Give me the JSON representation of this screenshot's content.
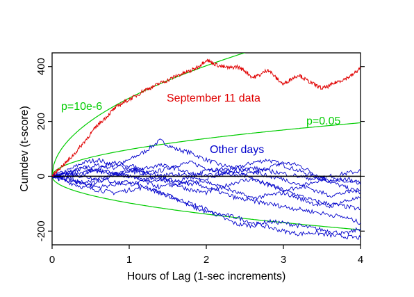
{
  "chart_data": {
    "type": "line",
    "title": "",
    "xlabel": "Hours of Lag (1-sec increments)",
    "ylabel": "Cumdev (t-score)",
    "xlim": [
      0,
      4
    ],
    "ylim": [
      -250,
      450
    ],
    "x_ticks": [
      0,
      1,
      2,
      3,
      4
    ],
    "y_ticks": [
      -200,
      0,
      200,
      400
    ],
    "x_tick_labels": [
      "0",
      "1",
      "2",
      "3",
      "4"
    ],
    "y_tick_labels": [
      "-200",
      "0",
      "200",
      "400"
    ],
    "grid": false,
    "zero_line": true,
    "colors": {
      "sept11": "#e00000",
      "other": "#0000cc",
      "envelope": "#00cc00",
      "axis": "#000000"
    },
    "annotations": [
      {
        "text": "September 11 data",
        "color": "#e00000"
      },
      {
        "text": "Other days",
        "color": "#0000cc"
      },
      {
        "text": "p=10e-6",
        "color": "#00cc00"
      },
      {
        "text": "p=0.05",
        "color": "#00cc00"
      }
    ],
    "envelopes": [
      {
        "label": "p=0.05",
        "coef": 97.5,
        "note": "y = ±coef*sqrt(x)"
      },
      {
        "label": "p=10e-6",
        "coef": 285,
        "note": "y = coef*sqrt(x)"
      }
    ],
    "series": [
      {
        "color": "#e00000",
        "x": [
          0,
          0.1,
          0.2,
          0.3,
          0.4,
          0.5,
          0.6,
          0.7,
          0.8,
          0.9,
          1.0,
          1.1,
          1.2,
          1.3,
          1.4,
          1.5,
          1.6,
          1.7,
          1.8,
          1.9,
          2.0,
          2.1,
          2.2,
          2.3,
          2.4,
          2.5,
          2.6,
          2.7,
          2.8,
          2.9,
          3.0,
          3.1,
          3.2,
          3.3,
          3.4,
          3.5,
          3.6,
          3.7,
          3.8,
          3.9,
          4.0
        ],
        "y": [
          0,
          30,
          55,
          85,
          120,
          155,
          190,
          215,
          245,
          265,
          280,
          295,
          315,
          325,
          340,
          350,
          365,
          375,
          385,
          400,
          425,
          410,
          400,
          395,
          400,
          385,
          360,
          370,
          390,
          360,
          335,
          355,
          370,
          350,
          335,
          320,
          330,
          345,
          355,
          370,
          395
        ]
      },
      {
        "color": "#0000cc",
        "x": [
          0,
          0.2,
          0.4,
          0.6,
          0.8,
          1.0,
          1.2,
          1.4,
          1.6,
          1.8,
          2.0,
          2.2,
          2.4,
          2.6,
          2.8,
          3.0,
          3.2,
          3.4,
          3.6,
          3.8,
          4.0
        ],
        "y": [
          0,
          10,
          30,
          40,
          30,
          60,
          90,
          130,
          100,
          85,
          60,
          40,
          30,
          50,
          60,
          40,
          20,
          0,
          -10,
          -20,
          -30
        ]
      },
      {
        "color": "#0000cc",
        "x": [
          0,
          0.2,
          0.4,
          0.6,
          0.8,
          1.0,
          1.2,
          1.4,
          1.6,
          1.8,
          2.0,
          2.2,
          2.4,
          2.6,
          2.8,
          3.0,
          3.2,
          3.4,
          3.6,
          3.8,
          4.0
        ],
        "y": [
          0,
          20,
          50,
          60,
          40,
          30,
          10,
          20,
          40,
          50,
          30,
          20,
          0,
          10,
          30,
          50,
          40,
          10,
          -20,
          -40,
          -60
        ]
      },
      {
        "color": "#0000cc",
        "x": [
          0,
          0.2,
          0.4,
          0.6,
          0.8,
          1.0,
          1.2,
          1.4,
          1.6,
          1.8,
          2.0,
          2.2,
          2.4,
          2.6,
          2.8,
          3.0,
          3.2,
          3.4,
          3.6,
          3.8,
          4.0
        ],
        "y": [
          0,
          -10,
          -30,
          -20,
          0,
          20,
          10,
          -10,
          -20,
          0,
          20,
          30,
          10,
          -10,
          -30,
          -50,
          -40,
          -20,
          0,
          10,
          20
        ]
      },
      {
        "color": "#0000cc",
        "x": [
          0,
          0.2,
          0.4,
          0.6,
          0.8,
          1.0,
          1.2,
          1.4,
          1.6,
          1.8,
          2.0,
          2.2,
          2.4,
          2.6,
          2.8,
          3.0,
          3.2,
          3.4,
          3.6,
          3.8,
          4.0
        ],
        "y": [
          0,
          -20,
          -40,
          -50,
          -60,
          -50,
          -40,
          -60,
          -80,
          -100,
          -120,
          -150,
          -175,
          -180,
          -165,
          -170,
          -180,
          -190,
          -200,
          -210,
          -190
        ]
      },
      {
        "color": "#0000cc",
        "x": [
          0,
          0.2,
          0.4,
          0.6,
          0.8,
          1.0,
          1.2,
          1.4,
          1.6,
          1.8,
          2.0,
          2.2,
          2.4,
          2.6,
          2.8,
          3.0,
          3.2,
          3.4,
          3.6,
          3.8,
          4.0
        ],
        "y": [
          0,
          -15,
          -25,
          -40,
          -30,
          -20,
          -40,
          -60,
          -80,
          -110,
          -130,
          -140,
          -150,
          -170,
          -185,
          -200,
          -210,
          -205,
          -215,
          -220,
          -225
        ]
      },
      {
        "color": "#0000cc",
        "x": [
          0,
          0.2,
          0.4,
          0.6,
          0.8,
          1.0,
          1.2,
          1.4,
          1.6,
          1.8,
          2.0,
          2.2,
          2.4,
          2.6,
          2.8,
          3.0,
          3.2,
          3.4,
          3.6,
          3.8,
          4.0
        ],
        "y": [
          0,
          10,
          0,
          -10,
          -20,
          -30,
          -20,
          -10,
          -30,
          -50,
          -60,
          -40,
          -20,
          -10,
          -30,
          -50,
          -70,
          -90,
          -100,
          -110,
          -120
        ]
      },
      {
        "color": "#0000cc",
        "x": [
          0,
          0.2,
          0.4,
          0.6,
          0.8,
          1.0,
          1.2,
          1.4,
          1.6,
          1.8,
          2.0,
          2.2,
          2.4,
          2.6,
          2.8,
          3.0,
          3.2,
          3.4,
          3.6,
          3.8,
          4.0
        ],
        "y": [
          0,
          5,
          15,
          20,
          10,
          0,
          -10,
          0,
          10,
          0,
          -20,
          -40,
          -60,
          -80,
          -70,
          -60,
          -80,
          -100,
          -110,
          -90,
          -80
        ]
      },
      {
        "color": "#0000cc",
        "x": [
          0,
          0.2,
          0.4,
          0.6,
          0.8,
          1.0,
          1.2,
          1.4,
          1.6,
          1.8,
          2.0,
          2.2,
          2.4,
          2.6,
          2.8,
          3.0,
          3.2,
          3.4,
          3.6,
          3.8,
          4.0
        ],
        "y": [
          0,
          -5,
          10,
          30,
          50,
          40,
          20,
          0,
          -20,
          -30,
          -10,
          10,
          30,
          20,
          0,
          -10,
          -30,
          -50,
          -70,
          -60,
          -50
        ]
      },
      {
        "color": "#0000cc",
        "x": [
          0,
          0.2,
          0.4,
          0.6,
          0.8,
          1.0,
          1.2,
          1.4,
          1.6,
          1.8,
          2.0,
          2.2,
          2.4,
          2.6,
          2.8,
          3.0,
          3.2,
          3.4,
          3.6,
          3.8,
          4.0
        ],
        "y": [
          0,
          15,
          30,
          20,
          10,
          0,
          -20,
          -40,
          -30,
          -20,
          -40,
          -60,
          -80,
          -90,
          -100,
          -110,
          -120,
          -130,
          -140,
          -150,
          -170
        ]
      },
      {
        "color": "#0000cc",
        "x": [
          0,
          0.2,
          0.4,
          0.6,
          0.8,
          1.0,
          1.2,
          1.4,
          1.6,
          1.8,
          2.0,
          2.2,
          2.4,
          2.6,
          2.8,
          3.0,
          3.2,
          3.4,
          3.6,
          3.8,
          4.0
        ],
        "y": [
          0,
          -10,
          -20,
          -10,
          10,
          20,
          30,
          40,
          30,
          10,
          0,
          10,
          20,
          30,
          20,
          10,
          0,
          -10,
          -20,
          -10,
          -20
        ]
      }
    ]
  }
}
